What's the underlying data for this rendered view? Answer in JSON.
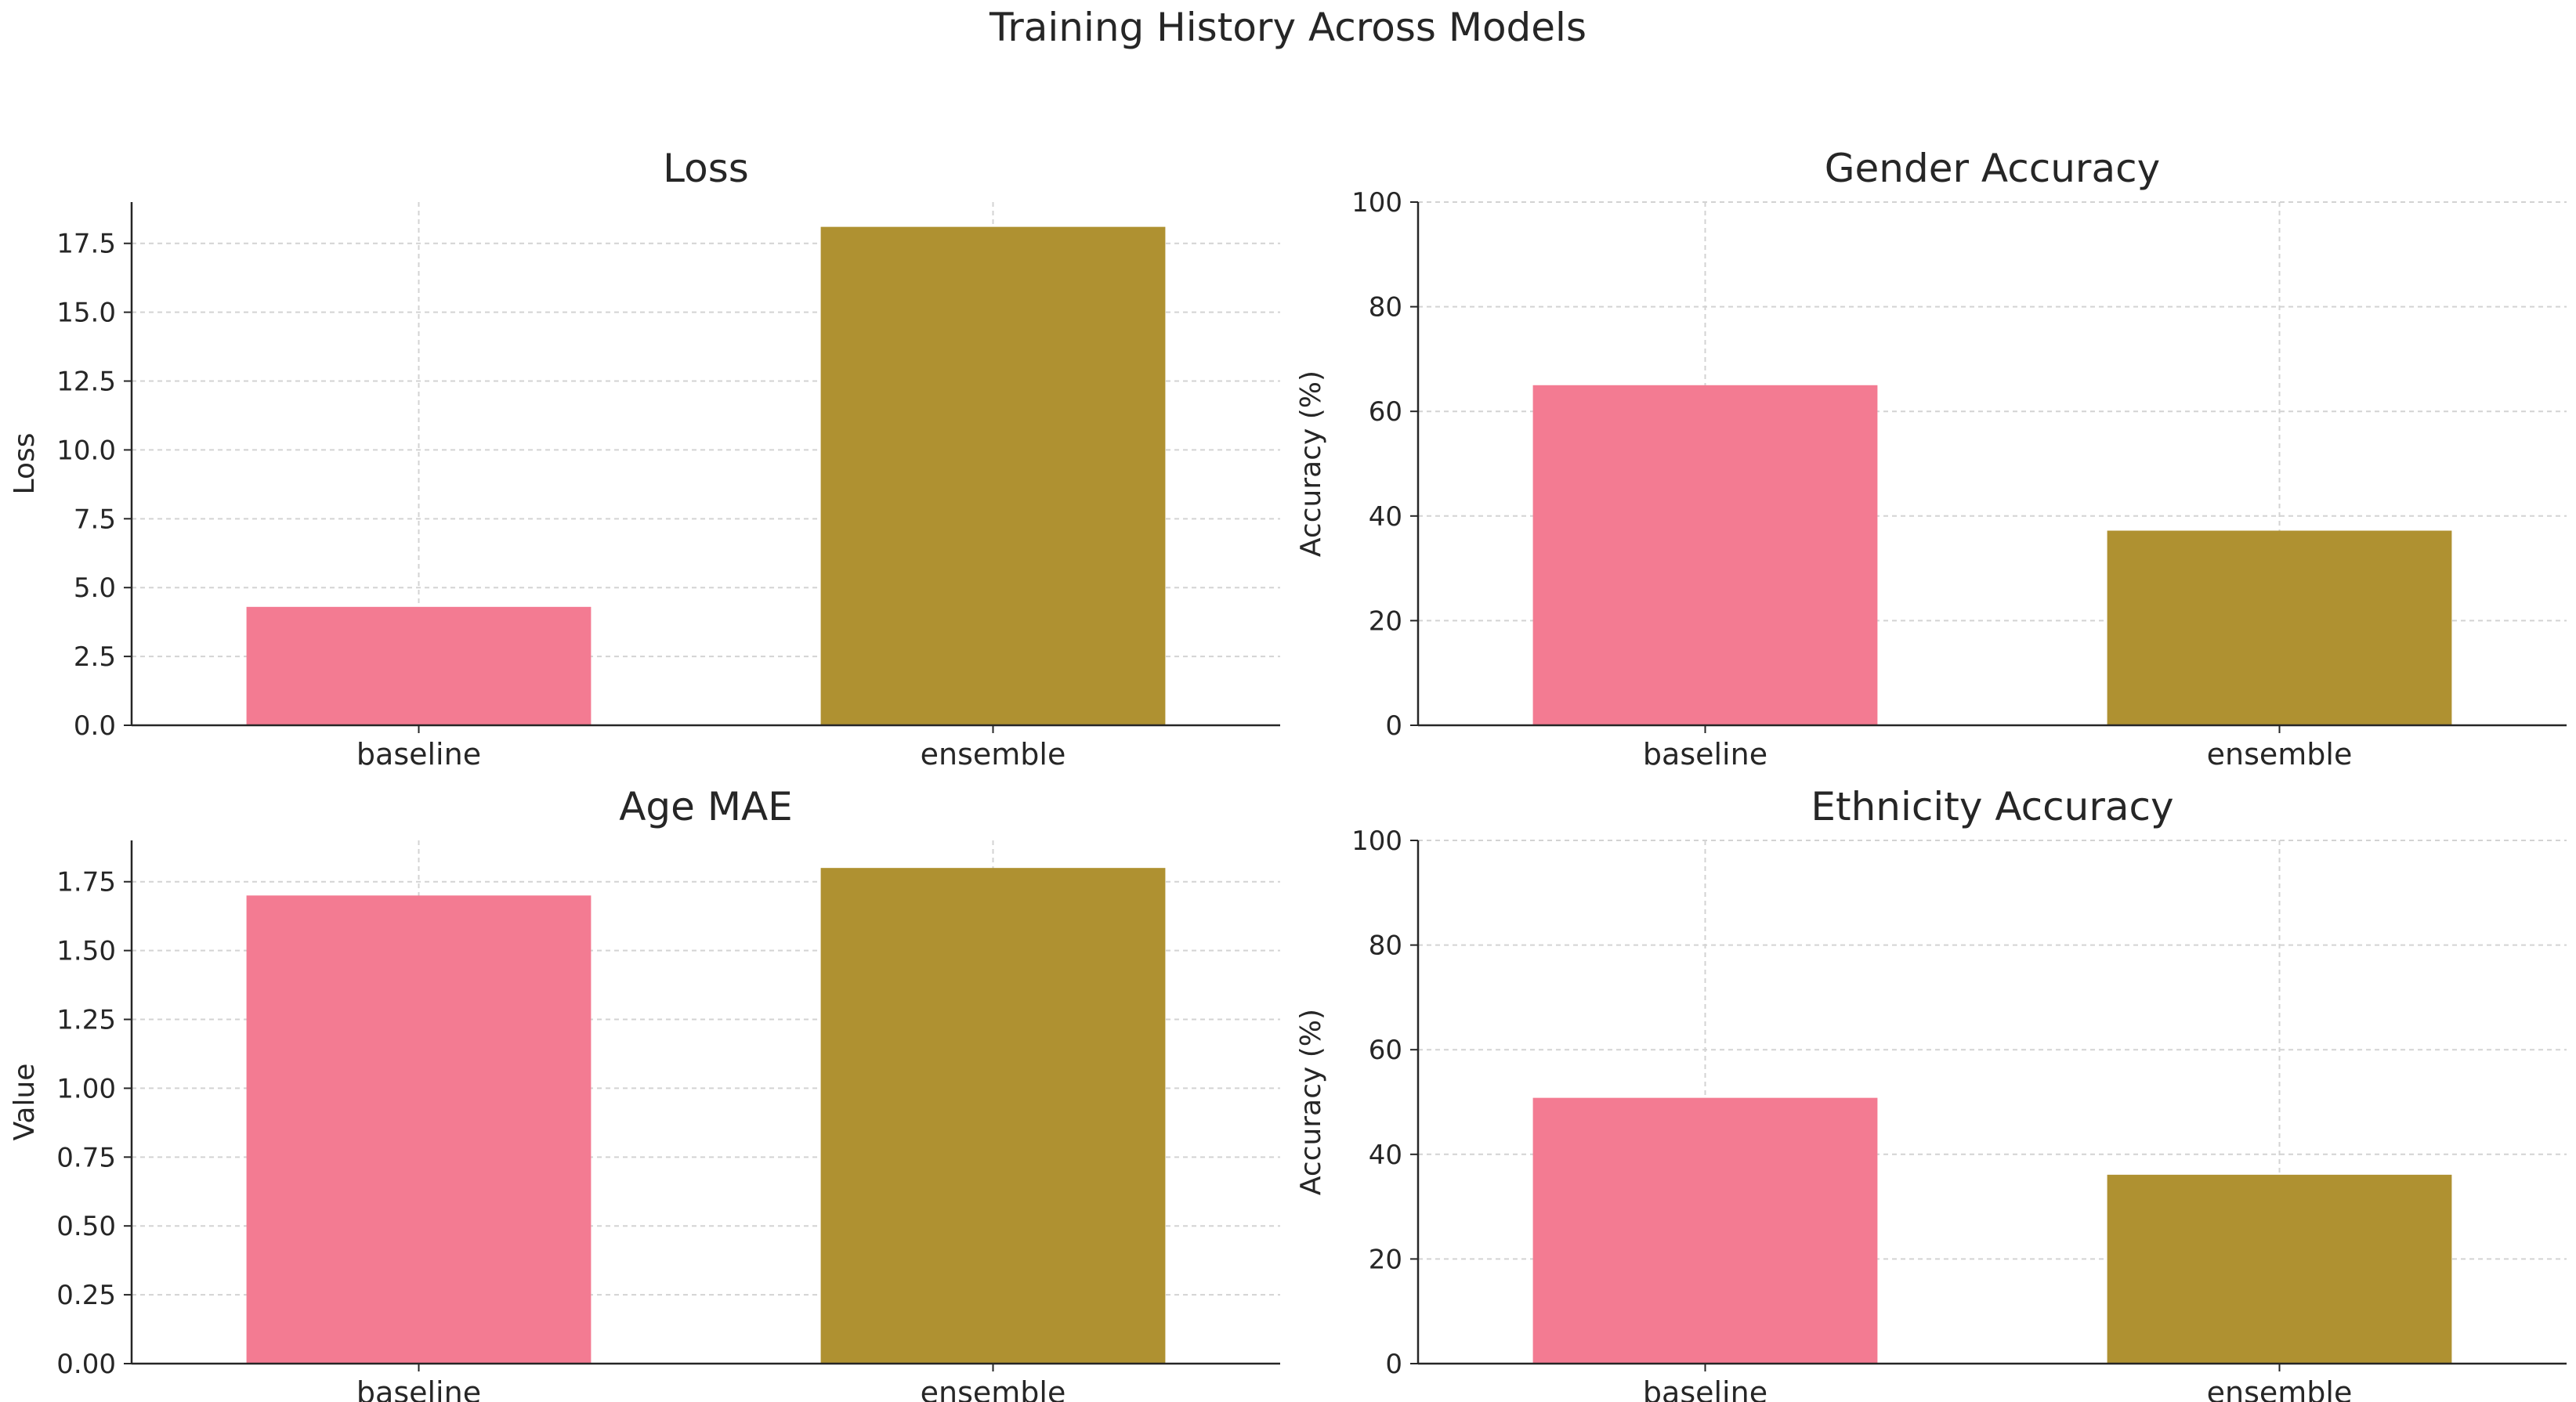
{
  "figure": {
    "title": "Training History Across Models"
  },
  "colors": {
    "baseline": "#f37b92",
    "ensemble": "#af9131",
    "grid": "#d3d3d3",
    "axis": "#262626"
  },
  "chart_data": [
    {
      "type": "bar",
      "title": "Loss",
      "xlabel": "",
      "ylabel": "Loss",
      "categories": [
        "baseline",
        "ensemble"
      ],
      "values": [
        4.3,
        18.1
      ],
      "ylim": [
        0,
        19
      ],
      "yticks": [
        0,
        2.5,
        5,
        7.5,
        10,
        12.5,
        15,
        17.5
      ],
      "ytick_labels": [
        "0.0",
        "2.5",
        "5.0",
        "7.5",
        "10.0",
        "12.5",
        "15.0",
        "17.5"
      ],
      "grid": true
    },
    {
      "type": "bar",
      "title": "Gender Accuracy",
      "xlabel": "",
      "ylabel": "Accuracy (%)",
      "categories": [
        "baseline",
        "ensemble"
      ],
      "values": [
        65,
        37.2
      ],
      "ylim": [
        0,
        100
      ],
      "yticks": [
        0,
        20,
        40,
        60,
        80,
        100
      ],
      "ytick_labels": [
        "0",
        "20",
        "40",
        "60",
        "80",
        "100"
      ],
      "grid": true
    },
    {
      "type": "bar",
      "title": "Age MAE",
      "xlabel": "",
      "ylabel": "Value",
      "categories": [
        "baseline",
        "ensemble"
      ],
      "values": [
        1.7,
        1.8
      ],
      "ylim": [
        0,
        1.9
      ],
      "yticks": [
        0,
        0.25,
        0.5,
        0.75,
        1,
        1.25,
        1.5,
        1.75
      ],
      "ytick_labels": [
        "0.00",
        "0.25",
        "0.50",
        "0.75",
        "1.00",
        "1.25",
        "1.50",
        "1.75"
      ],
      "grid": true
    },
    {
      "type": "bar",
      "title": "Ethnicity Accuracy",
      "xlabel": "",
      "ylabel": "Accuracy (%)",
      "categories": [
        "baseline",
        "ensemble"
      ],
      "values": [
        50.8,
        36.1
      ],
      "ylim": [
        0,
        100
      ],
      "yticks": [
        0,
        20,
        40,
        60,
        80,
        100
      ],
      "ytick_labels": [
        "0",
        "20",
        "40",
        "60",
        "80",
        "100"
      ],
      "grid": true
    }
  ]
}
